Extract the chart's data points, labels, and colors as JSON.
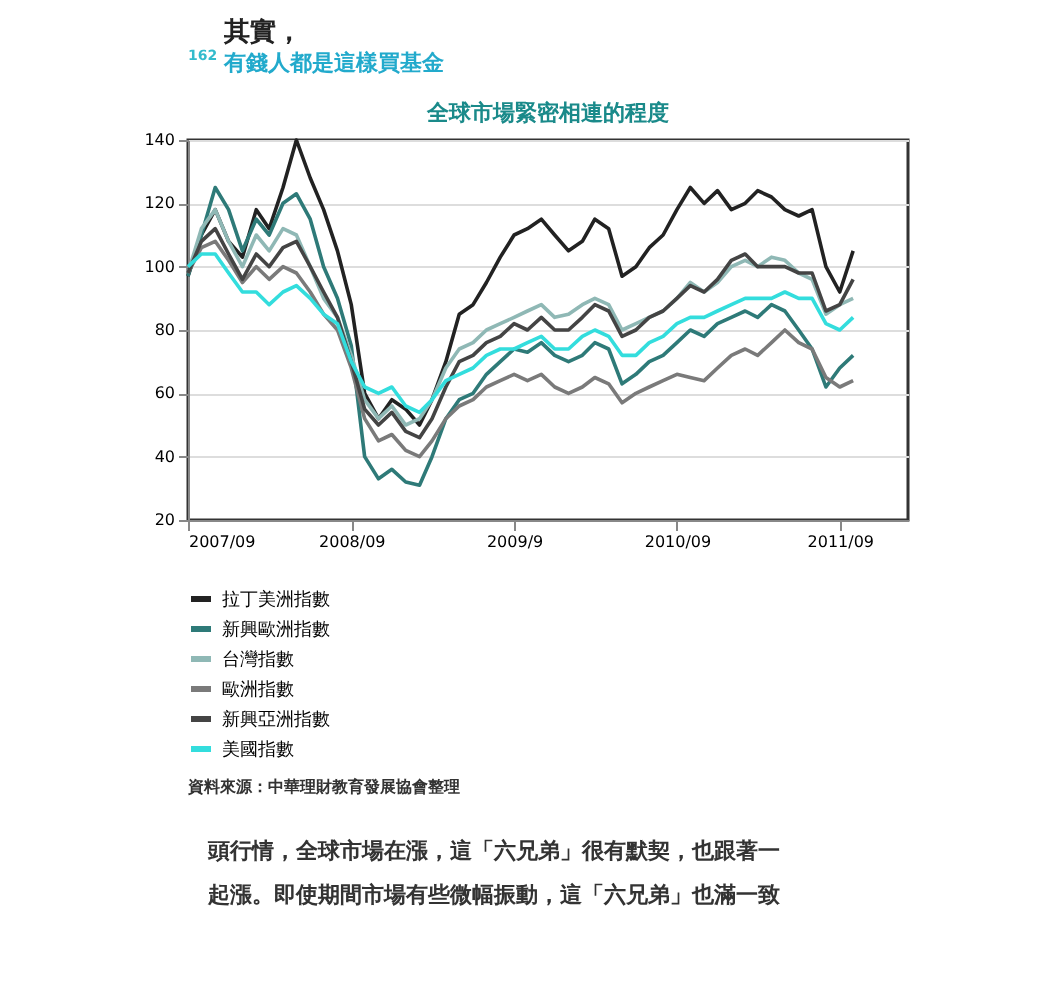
{
  "chart_data": {
    "type": "line",
    "title": "全球市場緊密相連的程度",
    "x": [
      "2007-09",
      "2007-10",
      "2007-11",
      "2007-12",
      "2008-01",
      "2008-02",
      "2008-03",
      "2008-04",
      "2008-05",
      "2008-06",
      "2008-07",
      "2008-08",
      "2008-09",
      "2008-10",
      "2008-11",
      "2008-12",
      "2009-01",
      "2009-02",
      "2009-03",
      "2009-04",
      "2009-05",
      "2009-06",
      "2009-07",
      "2009-08",
      "2009-09",
      "2009-10",
      "2009-11",
      "2009-12",
      "2010-01",
      "2010-02",
      "2010-03",
      "2010-04",
      "2010-05",
      "2010-06",
      "2010-07",
      "2010-08",
      "2010-09",
      "2010-10",
      "2010-11",
      "2010-12",
      "2011-01",
      "2011-02",
      "2011-03",
      "2011-04",
      "2011-05",
      "2011-06",
      "2011-07",
      "2011-08",
      "2011-09",
      "2011-10"
    ],
    "series": [
      {
        "name": "拉丁美洲指數",
        "color": "#222222",
        "values": [
          97,
          110,
          118,
          108,
          103,
          118,
          112,
          125,
          140,
          128,
          118,
          105,
          88,
          60,
          52,
          58,
          55,
          50,
          58,
          70,
          85,
          88,
          95,
          103,
          110,
          112,
          115,
          110,
          105,
          108,
          115,
          112,
          97,
          100,
          106,
          110,
          118,
          125,
          120,
          124,
          118,
          120,
          124,
          122,
          118,
          116,
          118,
          100,
          92,
          105
        ]
      },
      {
        "name": "新興歐洲指數",
        "color": "#2e7a78",
        "values": [
          97,
          110,
          125,
          118,
          105,
          115,
          110,
          120,
          123,
          115,
          100,
          90,
          75,
          40,
          33,
          36,
          32,
          31,
          40,
          52,
          58,
          60,
          66,
          70,
          74,
          73,
          76,
          72,
          70,
          72,
          76,
          74,
          63,
          66,
          70,
          72,
          76,
          80,
          78,
          82,
          84,
          86,
          84,
          88,
          86,
          80,
          74,
          62,
          68,
          72
        ]
      },
      {
        "name": "台灣指數",
        "color": "#8fb8b5",
        "values": [
          98,
          112,
          118,
          108,
          100,
          110,
          105,
          112,
          110,
          100,
          90,
          84,
          72,
          58,
          52,
          56,
          50,
          52,
          58,
          68,
          74,
          76,
          80,
          82,
          84,
          86,
          88,
          84,
          85,
          88,
          90,
          88,
          80,
          82,
          84,
          86,
          90,
          95,
          92,
          95,
          100,
          102,
          100,
          103,
          102,
          98,
          96,
          85,
          88,
          90
        ]
      },
      {
        "name": "歐洲指數",
        "color": "#7a7a7a",
        "values": [
          98,
          106,
          108,
          102,
          95,
          100,
          96,
          100,
          98,
          92,
          85,
          80,
          68,
          52,
          45,
          47,
          42,
          40,
          45,
          52,
          56,
          58,
          62,
          64,
          66,
          64,
          66,
          62,
          60,
          62,
          65,
          63,
          57,
          60,
          62,
          64,
          66,
          65,
          64,
          68,
          72,
          74,
          72,
          76,
          80,
          76,
          74,
          65,
          62,
          64
        ]
      },
      {
        "name": "新興亞洲指數",
        "color": "#444444",
        "values": [
          98,
          108,
          112,
          104,
          96,
          104,
          100,
          106,
          108,
          100,
          92,
          84,
          70,
          55,
          50,
          54,
          48,
          46,
          52,
          62,
          70,
          72,
          76,
          78,
          82,
          80,
          84,
          80,
          80,
          84,
          88,
          86,
          78,
          80,
          84,
          86,
          90,
          94,
          92,
          96,
          102,
          104,
          100,
          100,
          100,
          98,
          98,
          86,
          88,
          96
        ]
      },
      {
        "name": "美國指數",
        "color": "#33dddd",
        "values": [
          100,
          104,
          104,
          98,
          92,
          92,
          88,
          92,
          94,
          90,
          85,
          82,
          70,
          62,
          60,
          62,
          56,
          54,
          58,
          64,
          66,
          68,
          72,
          74,
          74,
          76,
          78,
          74,
          74,
          78,
          80,
          78,
          72,
          72,
          76,
          78,
          82,
          84,
          84,
          86,
          88,
          90,
          90,
          90,
          92,
          90,
          90,
          82,
          80,
          84
        ]
      }
    ],
    "xlim": [
      "2007-09",
      "2012-02"
    ],
    "xticks": [
      {
        "value": "2007-09",
        "label": "2007/09"
      },
      {
        "value": "2008-09",
        "label": "2008/09"
      },
      {
        "value": "2009-09",
        "label": "2009/9"
      },
      {
        "value": "2010-09",
        "label": "2010/09"
      },
      {
        "value": "2011-09",
        "label": "2011/09"
      }
    ],
    "ylim": [
      20,
      140
    ],
    "yticks": [
      20,
      40,
      60,
      80,
      100,
      120,
      140
    ],
    "grid": "y",
    "legend": "bottom",
    "marker": "none",
    "line_style": "solid",
    "annotations": [
      "162",
      "其實，",
      "有錢人都是這樣買基金",
      "資料來源：中華理財教育發展協會整理",
      "頭行情，全球市場在漲，這「六兄弟」很有默契，也跟著一",
      "起漲。即使期間市場有些微幅振動，這「六兄弟」也滿一致"
    ]
  }
}
